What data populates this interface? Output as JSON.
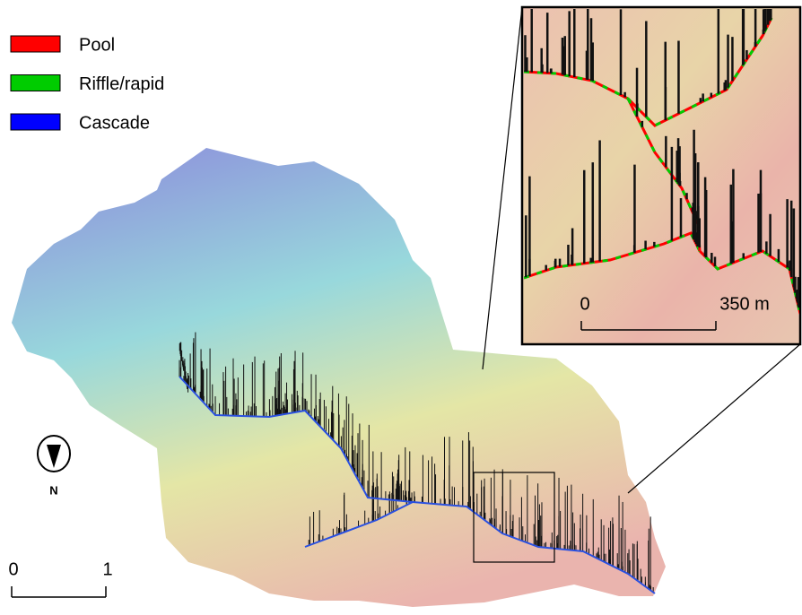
{
  "legend": [
    {
      "label": "Pool",
      "color": "#ff0000"
    },
    {
      "label": "Riffle/rapid",
      "color": "#00cc00"
    },
    {
      "label": "Cascade",
      "color": "#0000ff"
    }
  ],
  "north_arrow": {
    "label": "N"
  },
  "scale_bar": {
    "labels": [
      "0",
      "1"
    ]
  },
  "inset": {
    "scale_bar": {
      "labels": [
        "0",
        "350 m"
      ]
    }
  }
}
